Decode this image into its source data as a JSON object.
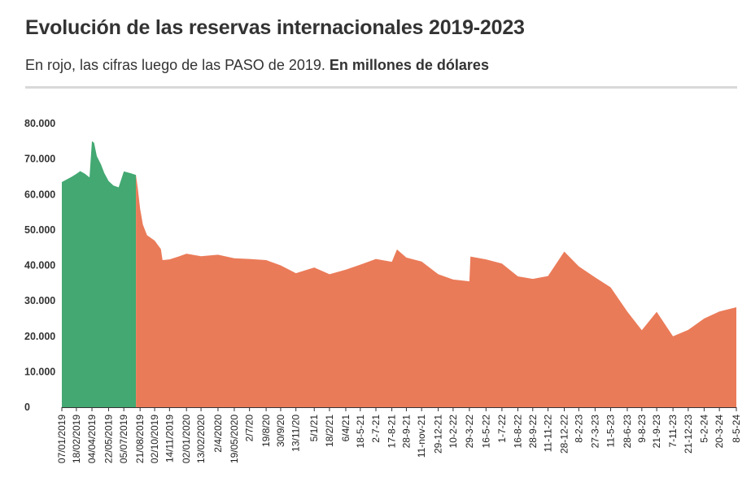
{
  "header": {
    "title": "Evolución de las reservas internacionales 2019-2023",
    "subtitle_plain": "En rojo, las cifras luego de las PASO de 2019. ",
    "subtitle_bold": "En millones de dólares"
  },
  "colors": {
    "before_paso": "#43a872",
    "after_paso": "#ea7b59",
    "rule": "#d9d9d9",
    "text": "#333333"
  },
  "chart_data": {
    "type": "area",
    "title": "Evolución de las reservas internacionales 2019-2023",
    "subtitle": "En rojo, las cifras luego de las PASO de 2019. En millones de dólares",
    "ylim": [
      0,
      80000
    ],
    "yticks": [
      {
        "value": 0,
        "label": "0"
      },
      {
        "value": 10000,
        "label": "10.000"
      },
      {
        "value": 20000,
        "label": "20.000"
      },
      {
        "value": 30000,
        "label": "30.000"
      },
      {
        "value": 40000,
        "label": "40.000"
      },
      {
        "value": 50000,
        "label": "50.000"
      },
      {
        "value": 60000,
        "label": "60.000"
      },
      {
        "value": 70000,
        "label": "70.000"
      },
      {
        "value": 80000,
        "label": "80.000"
      }
    ],
    "grid": false,
    "legend": "none",
    "xticklabels": [
      "07/01/2019",
      "18/02/2019",
      "04/04/2019",
      "22/05/2019",
      "05/07/2019",
      "21/08/2019",
      "02/10/2019",
      "14/11/2019",
      "02/01/2020",
      "13/02/2020",
      "2/4/2020",
      "19/05/2020",
      "2/7/20",
      "19/8/20",
      "30/9/20",
      "13/11/20",
      "5/1/21",
      "18/2/21",
      "6/4/21",
      "18-5-21",
      "2-7-21",
      "17-8-21",
      "28-9-21",
      "11-nov-21",
      "29-12-21",
      "10-2-22",
      "29-3-22",
      "16-5-22",
      "1-7-22",
      "16-8-22",
      "28-9-22",
      "11-11-22",
      "28-12-22",
      "8-2-23",
      "27-3-23",
      "11-5-23",
      "28-6-23",
      "9-8-23",
      "21-9-23",
      "7-11-23",
      "21-12-23",
      "5-2-24",
      "20-3-24",
      "8-5-24"
    ],
    "series": [
      {
        "color": "#43a872",
        "points": [
          {
            "x": "07/01/2019",
            "y": 63500
          },
          {
            "x": "05/02/2019",
            "y": 65000
          },
          {
            "x": "18/02/2019",
            "y": 65800
          },
          {
            "x": "01/03/2019",
            "y": 66600
          },
          {
            "x": "15/03/2019",
            "y": 65800
          },
          {
            "x": "28/03/2019",
            "y": 64800
          },
          {
            "x": "04/04/2019",
            "y": 75000
          },
          {
            "x": "10/04/2019",
            "y": 74600
          },
          {
            "x": "18/04/2019",
            "y": 70800
          },
          {
            "x": "30/04/2019",
            "y": 68500
          },
          {
            "x": "10/05/2019",
            "y": 66000
          },
          {
            "x": "22/05/2019",
            "y": 63800
          },
          {
            "x": "05/06/2019",
            "y": 62500
          },
          {
            "x": "20/06/2019",
            "y": 62000
          },
          {
            "x": "05/07/2019",
            "y": 66500
          },
          {
            "x": "25/07/2019",
            "y": 66000
          },
          {
            "x": "09/08/2019",
            "y": 65500
          }
        ]
      },
      {
        "color": "#ea7b59",
        "points": [
          {
            "x": "09/08/2019",
            "y": 65500
          },
          {
            "x": "14/08/2019",
            "y": 62000
          },
          {
            "x": "21/08/2019",
            "y": 56000
          },
          {
            "x": "29/08/2019",
            "y": 51500
          },
          {
            "x": "10/09/2019",
            "y": 48500
          },
          {
            "x": "02/10/2019",
            "y": 47000
          },
          {
            "x": "20/10/2019",
            "y": 44600
          },
          {
            "x": "25/10/2019",
            "y": 41500
          },
          {
            "x": "14/11/2019",
            "y": 41700
          },
          {
            "x": "10/12/2019",
            "y": 42500
          },
          {
            "x": "02/01/2020",
            "y": 43300
          },
          {
            "x": "13/02/2020",
            "y": 42600
          },
          {
            "x": "2/4/2020",
            "y": 43000
          },
          {
            "x": "19/05/2020",
            "y": 42000
          },
          {
            "x": "2/7/20",
            "y": 41800
          },
          {
            "x": "19/8/20",
            "y": 41500
          },
          {
            "x": "30/9/20",
            "y": 40000
          },
          {
            "x": "13/11/20",
            "y": 37800
          },
          {
            "x": "5/1/21",
            "y": 39400
          },
          {
            "x": "18/2/21",
            "y": 37500
          },
          {
            "x": "6/4/21",
            "y": 38800
          },
          {
            "x": "18-5-21",
            "y": 40200
          },
          {
            "x": "2-7-21",
            "y": 41800
          },
          {
            "x": "17-8-21",
            "y": 41000
          },
          {
            "x": "01-09-21",
            "y": 44500
          },
          {
            "x": "28-9-21",
            "y": 42200
          },
          {
            "x": "11-nov-21",
            "y": 41100
          },
          {
            "x": "29-12-21",
            "y": 37500
          },
          {
            "x": "10-2-22",
            "y": 36000
          },
          {
            "x": "29-3-22",
            "y": 35500
          },
          {
            "x": "01-04-22",
            "y": 42500
          },
          {
            "x": "16-5-22",
            "y": 41700
          },
          {
            "x": "1-7-22",
            "y": 40500
          },
          {
            "x": "16-8-22",
            "y": 36900
          },
          {
            "x": "28-9-22",
            "y": 36200
          },
          {
            "x": "11-11-22",
            "y": 37000
          },
          {
            "x": "28-12-22",
            "y": 43900
          },
          {
            "x": "8-2-23",
            "y": 39700
          },
          {
            "x": "27-3-23",
            "y": 36600
          },
          {
            "x": "11-5-23",
            "y": 33800
          },
          {
            "x": "28-6-23",
            "y": 27000
          },
          {
            "x": "9-8-23",
            "y": 21700
          },
          {
            "x": "21-9-23",
            "y": 26900
          },
          {
            "x": "7-11-23",
            "y": 20000
          },
          {
            "x": "21-12-23",
            "y": 21800
          },
          {
            "x": "5-2-24",
            "y": 25000
          },
          {
            "x": "20-3-24",
            "y": 27000
          },
          {
            "x": "8-5-24",
            "y": 28200
          }
        ]
      }
    ]
  }
}
